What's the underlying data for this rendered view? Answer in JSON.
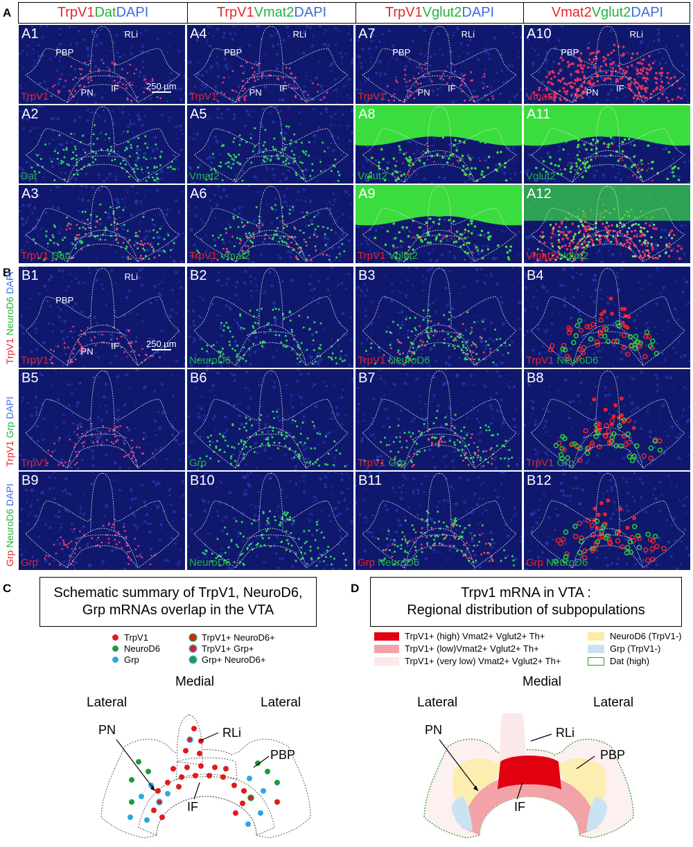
{
  "sections": {
    "A": "A",
    "B": "B",
    "C": "C",
    "D": "D"
  },
  "header": [
    {
      "parts": [
        {
          "t": "TrpV1",
          "c": "red"
        },
        {
          "t": " Dat",
          "c": "green"
        },
        {
          "t": " DAPI",
          "c": "blue"
        }
      ]
    },
    {
      "parts": [
        {
          "t": "TrpV1",
          "c": "red"
        },
        {
          "t": " Vmat2",
          "c": "green"
        },
        {
          "t": " DAPI",
          "c": "blue"
        }
      ]
    },
    {
      "parts": [
        {
          "t": "TrpV1",
          "c": "red"
        },
        {
          "t": " Vglut2",
          "c": "green"
        },
        {
          "t": " DAPI",
          "c": "blue"
        }
      ]
    },
    {
      "parts": [
        {
          "t": "Vmat2",
          "c": "red"
        },
        {
          "t": " Vglut2",
          "c": "green"
        },
        {
          "t": " DAPI",
          "c": "blue"
        }
      ]
    }
  ],
  "panels_a": [
    {
      "id": "A1",
      "b": [
        {
          "t": "TrpV1",
          "c": "red"
        }
      ],
      "mode": "red",
      "regions": true,
      "scale": true
    },
    {
      "id": "A4",
      "b": [
        {
          "t": "TrpV1",
          "c": "red"
        }
      ],
      "mode": "red",
      "regions": true
    },
    {
      "id": "A7",
      "b": [
        {
          "t": "TrpV1",
          "c": "red"
        }
      ],
      "mode": "red",
      "regions": true
    },
    {
      "id": "A10",
      "b": [
        {
          "t": "Vmat2",
          "c": "red"
        }
      ],
      "mode": "redheavy",
      "regions": true
    },
    {
      "id": "A2",
      "b": [
        {
          "t": "Dat",
          "c": "green"
        }
      ],
      "mode": "green"
    },
    {
      "id": "A5",
      "b": [
        {
          "t": "Vmat2",
          "c": "green"
        }
      ],
      "mode": "green"
    },
    {
      "id": "A8",
      "b": [
        {
          "t": "Vglut2",
          "c": "green"
        }
      ],
      "mode": "greenheavy"
    },
    {
      "id": "A11",
      "b": [
        {
          "t": "Vglut2",
          "c": "green"
        }
      ],
      "mode": "greenheavy"
    },
    {
      "id": "A3",
      "b": [
        {
          "t": "TrpV1",
          "c": "red"
        },
        {
          "t": " Dat",
          "c": "green"
        }
      ],
      "mode": "mix"
    },
    {
      "id": "A6",
      "b": [
        {
          "t": "TrpV1",
          "c": "red"
        },
        {
          "t": " Vmat2",
          "c": "green"
        }
      ],
      "mode": "mix"
    },
    {
      "id": "A9",
      "b": [
        {
          "t": "TrpV1",
          "c": "red"
        },
        {
          "t": " Vglut2",
          "c": "green"
        }
      ],
      "mode": "greenheavy"
    },
    {
      "id": "A12",
      "b": [
        {
          "t": "Vmat2",
          "c": "red"
        },
        {
          "t": " Vglut2",
          "c": "green"
        }
      ],
      "mode": "mixheavy"
    }
  ],
  "panels_b": [
    {
      "id": "B1",
      "b": [
        {
          "t": "TrpV1",
          "c": "red"
        }
      ],
      "mode": "red",
      "regions": true,
      "scale": true
    },
    {
      "id": "B2",
      "b": [
        {
          "t": "NeuroD6",
          "c": "green"
        }
      ],
      "mode": "green"
    },
    {
      "id": "B3",
      "b": [
        {
          "t": "TrpV1",
          "c": "red"
        },
        {
          "t": " NeuroD6",
          "c": "green"
        }
      ],
      "mode": "mix"
    },
    {
      "id": "B4",
      "b": [
        {
          "t": "TrpV1",
          "c": "red"
        },
        {
          "t": " NeuroD6",
          "c": "green"
        }
      ],
      "mode": "circles"
    },
    {
      "id": "B5",
      "b": [
        {
          "t": "TrpV1",
          "c": "red"
        }
      ],
      "mode": "red"
    },
    {
      "id": "B6",
      "b": [
        {
          "t": "Grp",
          "c": "green"
        }
      ],
      "mode": "green"
    },
    {
      "id": "B7",
      "b": [
        {
          "t": "TrpV1",
          "c": "red"
        },
        {
          "t": " Grp",
          "c": "green"
        }
      ],
      "mode": "mix"
    },
    {
      "id": "B8",
      "b": [
        {
          "t": "TrpV1",
          "c": "red"
        },
        {
          "t": " Grp",
          "c": "green"
        }
      ],
      "mode": "circles"
    },
    {
      "id": "B9",
      "b": [
        {
          "t": "Grp",
          "c": "red"
        }
      ],
      "mode": "red"
    },
    {
      "id": "B10",
      "b": [
        {
          "t": "NeuroD6",
          "c": "green"
        }
      ],
      "mode": "green"
    },
    {
      "id": "B11",
      "b": [
        {
          "t": "Grp",
          "c": "red"
        },
        {
          "t": " NeuroD6",
          "c": "green"
        }
      ],
      "mode": "mix"
    },
    {
      "id": "B12",
      "b": [
        {
          "t": "Grp",
          "c": "red"
        },
        {
          "t": " NeuroD6",
          "c": "green"
        }
      ],
      "mode": "circles"
    }
  ],
  "b_side": [
    [
      {
        "t": "TrpV1",
        "c": "red"
      },
      {
        "t": " NeuroD6",
        "c": "green"
      },
      {
        "t": " DAPI",
        "c": "blue"
      }
    ],
    [
      {
        "t": "TrpV1",
        "c": "red"
      },
      {
        "t": " Grp",
        "c": "green"
      },
      {
        "t": " DAPI",
        "c": "blue"
      }
    ],
    [
      {
        "t": "Grp",
        "c": "red"
      },
      {
        "t": " NeuroD6",
        "c": "green"
      },
      {
        "t": " DAPI",
        "c": "blue"
      }
    ]
  ],
  "regions": {
    "pbp": "PBP",
    "rli": "RLi",
    "pn": "PN",
    "if": "IF"
  },
  "scale_label": "250 µm",
  "c": {
    "title_line1": "Schematic summary of TrpV1, NeuroD6,",
    "title_line2": "Grp mRNAs overlap in the VTA",
    "legend_left": [
      {
        "label": "TrpV1",
        "color": "#e11a1a"
      },
      {
        "label": "NeuroD6",
        "color": "#1e9b3c"
      },
      {
        "label": "Grp",
        "color": "#2fa6e0"
      }
    ],
    "legend_right": [
      {
        "label": "TrpV1+ NeuroD6+",
        "fill": "#e11a1a",
        "ring": "#1e9b3c"
      },
      {
        "label": "TrpV1+ Grp+",
        "fill": "#e11a1a",
        "ring": "#2fa6e0"
      },
      {
        "label": "Grp+ NeuroD6+",
        "fill": "#1e9b3c",
        "ring": "#2fa6e0"
      }
    ],
    "medial": "Medial",
    "lateral": "Lateral",
    "rli": "RLi",
    "pn": "PN",
    "pbp": "PBP",
    "if": "IF"
  },
  "d": {
    "title_line1": "Trpv1 mRNA in VTA :",
    "title_line2": "Regional distribution of subpopulations",
    "legend": [
      {
        "label": "TrpV1+ (high) Vmat2+ Vglut2+ Th+",
        "color": "#e0000f"
      },
      {
        "label": "TrpV1+ (low)Vmat2+ Vglut2+ Th+",
        "color": "#f2a3a8"
      },
      {
        "label": "TrpV1+ (very low) Vmat2+ Vglut2+ Th+",
        "color": "#fbe9ea"
      },
      {
        "label": "NeuroD6 (TrpV1-)",
        "color": "#fbeca4"
      },
      {
        "label": "Grp (TrpV1-)",
        "color": "#c9e3f2"
      },
      {
        "label": "Dat (high)",
        "color": "#ffffff"
      }
    ],
    "medial": "Medial",
    "lateral": "Lateral",
    "rli": "RLi",
    "pn": "PN",
    "pbp": "PBP",
    "if": "IF"
  }
}
